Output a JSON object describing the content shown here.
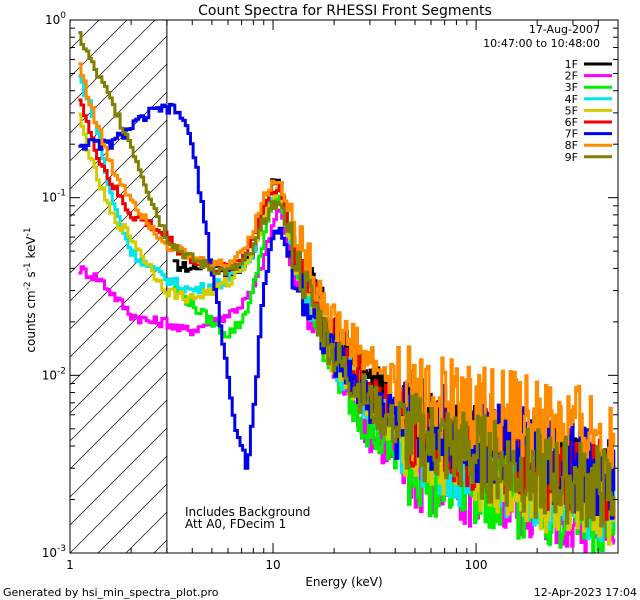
{
  "chart_data": {
    "type": "line",
    "title": "Count Spectra for RHESSI Front Segments",
    "xlabel": "Energy (keV)",
    "ylabel_base": "counts cm",
    "ylabel_sup1": "-2",
    "ylabel_mid": " s",
    "ylabel_sup2": "-1",
    "ylabel_unit": " keV",
    "ylabel_sup3": "-1",
    "x_scale": "log",
    "y_scale": "log",
    "xlim": [
      1,
      500
    ],
    "ylim": [
      0.001,
      1
    ],
    "x_ticks": [
      {
        "value": 1,
        "label": "1"
      },
      {
        "value": 10,
        "label": "10"
      },
      {
        "value": 100,
        "label": "100"
      }
    ],
    "y_ticks": [
      {
        "value": 0.001,
        "base": "10",
        "exp": "-3"
      },
      {
        "value": 0.01,
        "base": "10",
        "exp": "-2"
      },
      {
        "value": 0.1,
        "base": "10",
        "exp": "-1"
      },
      {
        "value": 1,
        "base": "10",
        "exp": "0"
      }
    ],
    "date": "17-Aug-2007",
    "time_range": "10:47:00 to 10:48:00",
    "hatched_region_max_keV": 3,
    "annotation_line1": "Includes Background",
    "annotation_line2": "Att A0, FDecim 1",
    "series": [
      {
        "name": "1F",
        "color": "#000000",
        "points": [
          [
            3.2,
            0.042
          ],
          [
            4,
            0.04
          ],
          [
            5,
            0.045
          ],
          [
            6,
            0.038
          ],
          [
            7,
            0.04
          ],
          [
            8,
            0.05
          ],
          [
            9,
            0.08
          ],
          [
            10,
            0.12
          ],
          [
            10.8,
            0.13
          ],
          [
            12,
            0.07
          ],
          [
            14,
            0.04
          ],
          [
            17,
            0.025
          ],
          [
            20,
            0.017
          ],
          [
            25,
            0.012
          ],
          [
            30,
            0.009
          ],
          [
            40,
            0.007
          ],
          [
            50,
            0.006
          ],
          [
            60,
            0.005
          ],
          [
            80,
            0.0045
          ],
          [
            100,
            0.004
          ],
          [
            150,
            0.0037
          ],
          [
            200,
            0.0033
          ],
          [
            300,
            0.0028
          ],
          [
            400,
            0.0025
          ],
          [
            480,
            0.0022
          ]
        ]
      },
      {
        "name": "2F",
        "color": "#ff00ff",
        "points": [
          [
            1.1,
            0.04
          ],
          [
            1.4,
            0.035
          ],
          [
            2,
            0.022
          ],
          [
            2.5,
            0.02
          ],
          [
            3,
            0.02
          ],
          [
            3.5,
            0.018
          ],
          [
            4,
            0.018
          ],
          [
            5,
            0.02
          ],
          [
            6,
            0.022
          ],
          [
            7,
            0.025
          ],
          [
            8,
            0.03
          ],
          [
            9,
            0.045
          ],
          [
            10,
            0.07
          ],
          [
            10.8,
            0.09
          ],
          [
            12,
            0.05
          ],
          [
            14,
            0.03
          ],
          [
            17,
            0.017
          ],
          [
            20,
            0.011
          ],
          [
            25,
            0.007
          ],
          [
            30,
            0.005
          ],
          [
            40,
            0.0035
          ],
          [
            50,
            0.003
          ],
          [
            70,
            0.0025
          ],
          [
            100,
            0.0023
          ],
          [
            150,
            0.0022
          ],
          [
            200,
            0.002
          ],
          [
            300,
            0.0018
          ],
          [
            480,
            0.0016
          ]
        ]
      },
      {
        "name": "3F",
        "color": "#00ee00",
        "points": [
          [
            3.2,
            0.032
          ],
          [
            4,
            0.025
          ],
          [
            5,
            0.02
          ],
          [
            6,
            0.017
          ],
          [
            7,
            0.02
          ],
          [
            8,
            0.03
          ],
          [
            9,
            0.06
          ],
          [
            10,
            0.09
          ],
          [
            10.8,
            0.1
          ],
          [
            12,
            0.06
          ],
          [
            14,
            0.035
          ],
          [
            17,
            0.018
          ],
          [
            20,
            0.011
          ],
          [
            25,
            0.007
          ],
          [
            30,
            0.005
          ],
          [
            40,
            0.0035
          ],
          [
            50,
            0.003
          ],
          [
            70,
            0.0027
          ],
          [
            100,
            0.0025
          ],
          [
            150,
            0.0022
          ],
          [
            200,
            0.002
          ],
          [
            300,
            0.0018
          ],
          [
            480,
            0.0016
          ]
        ]
      },
      {
        "name": "4F",
        "color": "#00e5ee",
        "points": [
          [
            1.1,
            0.5
          ],
          [
            1.3,
            0.3
          ],
          [
            1.6,
            0.1
          ],
          [
            2,
            0.05
          ],
          [
            2.5,
            0.04
          ],
          [
            3,
            0.035
          ],
          [
            3.5,
            0.032
          ],
          [
            4,
            0.03
          ],
          [
            5,
            0.032
          ],
          [
            6,
            0.034
          ],
          [
            7,
            0.04
          ],
          [
            8,
            0.05
          ],
          [
            9,
            0.08
          ],
          [
            10,
            0.1
          ],
          [
            10.8,
            0.11
          ],
          [
            12,
            0.06
          ],
          [
            14,
            0.035
          ],
          [
            17,
            0.02
          ],
          [
            20,
            0.013
          ],
          [
            25,
            0.009
          ],
          [
            30,
            0.007
          ],
          [
            40,
            0.005
          ],
          [
            50,
            0.004
          ],
          [
            70,
            0.0035
          ],
          [
            100,
            0.003
          ],
          [
            150,
            0.0028
          ],
          [
            200,
            0.0025
          ],
          [
            300,
            0.0022
          ],
          [
            480,
            0.002
          ]
        ]
      },
      {
        "name": "5F",
        "color": "#d4cc00",
        "points": [
          [
            1.1,
            0.3
          ],
          [
            1.3,
            0.15
          ],
          [
            1.6,
            0.08
          ],
          [
            2,
            0.06
          ],
          [
            2.5,
            0.04
          ],
          [
            3,
            0.03
          ],
          [
            3.5,
            0.028
          ],
          [
            4,
            0.027
          ],
          [
            5,
            0.03
          ],
          [
            6,
            0.033
          ],
          [
            7,
            0.04
          ],
          [
            8,
            0.05
          ],
          [
            9,
            0.08
          ],
          [
            10,
            0.1
          ],
          [
            10.8,
            0.11
          ],
          [
            12,
            0.06
          ],
          [
            14,
            0.035
          ],
          [
            17,
            0.02
          ],
          [
            20,
            0.013
          ],
          [
            25,
            0.009
          ],
          [
            30,
            0.007
          ],
          [
            40,
            0.005
          ],
          [
            50,
            0.004
          ],
          [
            70,
            0.0035
          ],
          [
            100,
            0.003
          ],
          [
            150,
            0.0027
          ],
          [
            200,
            0.0024
          ],
          [
            300,
            0.0021
          ],
          [
            480,
            0.0019
          ]
        ]
      },
      {
        "name": "6F",
        "color": "#ee0000",
        "points": [
          [
            1.1,
            0.4
          ],
          [
            1.3,
            0.2
          ],
          [
            1.6,
            0.12
          ],
          [
            2,
            0.08
          ],
          [
            2.5,
            0.07
          ],
          [
            3,
            0.06
          ],
          [
            3.5,
            0.05
          ],
          [
            4,
            0.045
          ],
          [
            5,
            0.04
          ],
          [
            6,
            0.04
          ],
          [
            7,
            0.045
          ],
          [
            8,
            0.06
          ],
          [
            9,
            0.09
          ],
          [
            10,
            0.11
          ],
          [
            10.8,
            0.12
          ],
          [
            12,
            0.065
          ],
          [
            14,
            0.04
          ],
          [
            17,
            0.023
          ],
          [
            20,
            0.015
          ],
          [
            25,
            0.011
          ],
          [
            30,
            0.008
          ],
          [
            40,
            0.006
          ],
          [
            50,
            0.005
          ],
          [
            70,
            0.0045
          ],
          [
            100,
            0.004
          ],
          [
            150,
            0.0035
          ],
          [
            200,
            0.0032
          ],
          [
            300,
            0.0028
          ],
          [
            480,
            0.0025
          ]
        ]
      },
      {
        "name": "7F",
        "color": "#0000ee",
        "points": [
          [
            1.1,
            0.2
          ],
          [
            1.3,
            0.2
          ],
          [
            1.6,
            0.2
          ],
          [
            2,
            0.25
          ],
          [
            2.5,
            0.3
          ],
          [
            3,
            0.32
          ],
          [
            3.5,
            0.3
          ],
          [
            4,
            0.2
          ],
          [
            4.5,
            0.09
          ],
          [
            5,
            0.04
          ],
          [
            5.5,
            0.02
          ],
          [
            6,
            0.01
          ],
          [
            6.5,
            0.005
          ],
          [
            7,
            0.004
          ],
          [
            7.5,
            0.003
          ],
          [
            8,
            0.006
          ],
          [
            9,
            0.03
          ],
          [
            10,
            0.06
          ],
          [
            10.8,
            0.07
          ],
          [
            12,
            0.045
          ],
          [
            14,
            0.03
          ],
          [
            17,
            0.019
          ],
          [
            20,
            0.013
          ],
          [
            25,
            0.009
          ],
          [
            30,
            0.007
          ],
          [
            40,
            0.006
          ],
          [
            50,
            0.0055
          ],
          [
            70,
            0.005
          ],
          [
            100,
            0.0045
          ],
          [
            150,
            0.004
          ],
          [
            200,
            0.0035
          ],
          [
            300,
            0.003
          ],
          [
            480,
            0.0026
          ]
        ]
      },
      {
        "name": "8F",
        "color": "#ff8c00",
        "points": [
          [
            1.1,
            0.6
          ],
          [
            1.3,
            0.3
          ],
          [
            1.6,
            0.15
          ],
          [
            2,
            0.1
          ],
          [
            2.5,
            0.07
          ],
          [
            3,
            0.055
          ],
          [
            3.5,
            0.05
          ],
          [
            4,
            0.045
          ],
          [
            5,
            0.042
          ],
          [
            6,
            0.042
          ],
          [
            7,
            0.05
          ],
          [
            8,
            0.065
          ],
          [
            9,
            0.1
          ],
          [
            10,
            0.12
          ],
          [
            10.8,
            0.13
          ],
          [
            12,
            0.08
          ],
          [
            14,
            0.05
          ],
          [
            17,
            0.03
          ],
          [
            20,
            0.02
          ],
          [
            25,
            0.015
          ],
          [
            30,
            0.012
          ],
          [
            40,
            0.009
          ],
          [
            50,
            0.008
          ],
          [
            70,
            0.007
          ],
          [
            100,
            0.0065
          ],
          [
            150,
            0.006
          ],
          [
            200,
            0.0055
          ],
          [
            300,
            0.005
          ],
          [
            480,
            0.0045
          ]
        ]
      },
      {
        "name": "9F",
        "color": "#808000",
        "points": [
          [
            1.1,
            0.85
          ],
          [
            1.3,
            0.55
          ],
          [
            1.6,
            0.35
          ],
          [
            2,
            0.2
          ],
          [
            2.5,
            0.1
          ],
          [
            3,
            0.06
          ],
          [
            3.5,
            0.05
          ],
          [
            4,
            0.045
          ],
          [
            5,
            0.04
          ],
          [
            6,
            0.038
          ],
          [
            7,
            0.042
          ],
          [
            8,
            0.05
          ],
          [
            9,
            0.075
          ],
          [
            10,
            0.09
          ],
          [
            10.8,
            0.1
          ],
          [
            12,
            0.06
          ],
          [
            14,
            0.035
          ],
          [
            17,
            0.02
          ],
          [
            20,
            0.013
          ],
          [
            25,
            0.009
          ],
          [
            30,
            0.007
          ],
          [
            40,
            0.005
          ],
          [
            50,
            0.0045
          ],
          [
            70,
            0.004
          ],
          [
            100,
            0.0035
          ],
          [
            150,
            0.003
          ],
          [
            200,
            0.0028
          ],
          [
            300,
            0.0025
          ],
          [
            480,
            0.0022
          ]
        ]
      }
    ]
  },
  "footer": {
    "generated_by": "Generated by hsi_min_spectra_plot.pro",
    "timestamp": "12-Apr-2023 17:04"
  }
}
